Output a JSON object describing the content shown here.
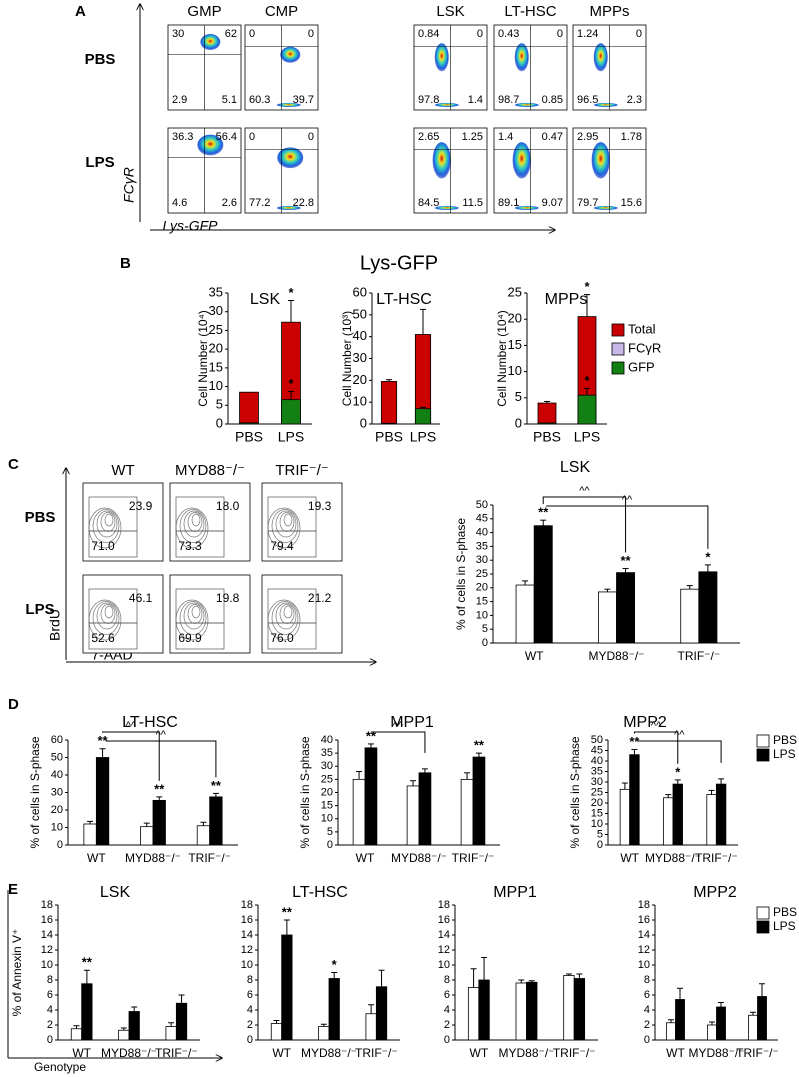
{
  "panel_labels": [
    "A",
    "B",
    "C",
    "D",
    "E"
  ],
  "flow_a": {
    "columns": [
      "GMP",
      "CMP",
      "LSK",
      "LT-HSC",
      "MPPs"
    ],
    "rows": [
      {
        "label": "PBS",
        "quadrants": [
          [
            "30",
            "62",
            "2.9",
            "5.1"
          ],
          [
            "0",
            "0",
            "60.3",
            "39.7"
          ],
          [
            "0.84",
            "0",
            "97.8",
            "1.4"
          ],
          [
            "0.43",
            "0",
            "98.7",
            "0.85"
          ],
          [
            "1.24",
            "0",
            "96.5",
            "2.3"
          ]
        ]
      },
      {
        "label": "LPS",
        "quadrants": [
          [
            "36.3",
            "56.4",
            "4.6",
            "2.6"
          ],
          [
            "0",
            "0",
            "77.2",
            "22.8"
          ],
          [
            "2.65",
            "1.25",
            "84.5",
            "11.5"
          ],
          [
            "1.4",
            "0.47",
            "89.1",
            "9.07"
          ],
          [
            "2.95",
            "1.78",
            "79.7",
            "15.6"
          ]
        ]
      }
    ],
    "y_axis": "FCγR",
    "x_axis": "Lys-GFP"
  },
  "panel_b": {
    "title": "Lys-GFP"
  },
  "flow_c": {
    "columns": [
      "WT",
      "MYD88⁻/⁻",
      "TRIF⁻/⁻"
    ],
    "rows": [
      {
        "label": "PBS",
        "gates": [
          [
            "23.9",
            "71.0"
          ],
          [
            "18.0",
            "73.3"
          ],
          [
            "19.3",
            "79.4"
          ]
        ]
      },
      {
        "label": "LPS",
        "gates": [
          [
            "46.1",
            "52.6"
          ],
          [
            "19.8",
            "69.9"
          ],
          [
            "21.2",
            "76.0"
          ]
        ]
      }
    ],
    "y_axis": "BrdU",
    "x_axis": "7-AAD"
  },
  "chart_data": [
    {
      "type": "bar",
      "overlay": true,
      "title": "LSK",
      "ylabel": "Cell Number (10⁴)",
      "categories": [
        "PBS",
        "LPS"
      ],
      "series": [
        {
          "name": "Total",
          "color": "#cc0000",
          "values": [
            8.5,
            27.2
          ],
          "errors": [
            null,
            5.8
          ],
          "stars": [
            null,
            "*"
          ]
        },
        {
          "name": "FCγR",
          "color": "#c8b8e8",
          "values": [
            0.2,
            0.6
          ],
          "errors": [
            null,
            null
          ]
        },
        {
          "name": "GFP",
          "color": "#138013",
          "values": [
            0.3,
            6.5
          ],
          "errors": [
            null,
            2.2
          ],
          "stars": [
            null,
            "*"
          ]
        }
      ],
      "ylim": [
        0,
        35
      ],
      "yticks": [
        0,
        5,
        10,
        15,
        20,
        25,
        30,
        35
      ],
      "legend": false
    },
    {
      "type": "bar",
      "overlay": true,
      "title": "LT-HSC",
      "ylabel": "Cell Number (10³)",
      "categories": [
        "PBS",
        "LPS"
      ],
      "series": [
        {
          "name": "Total",
          "color": "#cc0000",
          "values": [
            19.5,
            41
          ],
          "errors": [
            0.8,
            11.5
          ]
        },
        {
          "name": "FCγR",
          "color": "#c8b8e8",
          "values": [
            0.3,
            0.8
          ],
          "errors": [
            null,
            null
          ]
        },
        {
          "name": "GFP",
          "color": "#138013",
          "values": [
            0.3,
            7
          ],
          "errors": [
            null,
            0.6
          ]
        }
      ],
      "ylim": [
        0,
        60
      ],
      "yticks": [
        0,
        10,
        20,
        30,
        40,
        50,
        60
      ],
      "legend": false
    },
    {
      "type": "bar",
      "overlay": true,
      "title": "MPPs",
      "ylabel": "Cell Number (10⁴)",
      "categories": [
        "PBS",
        "LPS"
      ],
      "series": [
        {
          "name": "Total",
          "color": "#cc0000",
          "values": [
            4,
            20.5
          ],
          "errors": [
            0.3,
            4.2
          ],
          "stars": [
            null,
            "*"
          ]
        },
        {
          "name": "FCγR",
          "color": "#c8b8e8",
          "values": [
            0.1,
            0.6
          ],
          "errors": [
            null,
            null
          ]
        },
        {
          "name": "GFP",
          "color": "#138013",
          "values": [
            0.2,
            5.5
          ],
          "errors": [
            null,
            1.3
          ],
          "stars": [
            null,
            "*"
          ]
        }
      ],
      "ylim": [
        0,
        25
      ],
      "yticks": [
        0,
        5,
        10,
        15,
        20,
        25
      ],
      "legend": true
    },
    {
      "type": "bar",
      "title": "LSK",
      "ylabel": "% of cells in S-phase",
      "categories": [
        "WT",
        "MYD88⁻/⁻",
        "TRIF⁻/⁻"
      ],
      "series": [
        {
          "name": "PBS",
          "color": "#ffffff",
          "values": [
            21,
            18.5,
            19.5
          ],
          "errors": [
            1.5,
            1,
            1.3
          ]
        },
        {
          "name": "LPS",
          "color": "#000000",
          "values": [
            42.5,
            25.5,
            25.8
          ],
          "errors": [
            2,
            1.5,
            2.5
          ],
          "stars": [
            "**",
            "**",
            "*"
          ]
        }
      ],
      "brackets": [
        {
          "from": "WT",
          "to": "MYD88⁻/⁻",
          "label": "^^"
        },
        {
          "from": "WT",
          "to": "TRIF⁻/⁻",
          "label": "^^"
        }
      ],
      "ylim": [
        0,
        50
      ],
      "yticks": [
        0,
        5,
        10,
        15,
        20,
        25,
        30,
        35,
        40,
        45,
        50
      ],
      "legend": false
    },
    {
      "type": "bar",
      "title": "LT-HSC",
      "ylabel": "% of cells in S-phase",
      "categories": [
        "WT",
        "MYD88⁻/⁻",
        "TRIF⁻/⁻"
      ],
      "series": [
        {
          "name": "PBS",
          "color": "#ffffff",
          "values": [
            12,
            10.5,
            11
          ],
          "errors": [
            1.5,
            2,
            2
          ]
        },
        {
          "name": "LPS",
          "color": "#000000",
          "values": [
            50,
            25.5,
            27.5
          ],
          "errors": [
            5,
            2,
            2
          ],
          "stars": [
            "**",
            "**",
            "**"
          ]
        }
      ],
      "brackets": [
        {
          "from": "WT",
          "to": "MYD88⁻/⁻",
          "label": "^^"
        },
        {
          "from": "WT",
          "to": "TRIF⁻/⁻",
          "label": "^^"
        }
      ],
      "ylim": [
        0,
        60
      ],
      "yticks": [
        0,
        10,
        20,
        30,
        40,
        50,
        60
      ],
      "legend": false
    },
    {
      "type": "bar",
      "title": "MPP1",
      "ylabel": "% of cells in S-phase",
      "categories": [
        "WT",
        "MYD88⁻/⁻",
        "TRIF⁻/⁻"
      ],
      "series": [
        {
          "name": "PBS",
          "color": "#ffffff",
          "values": [
            25,
            22.5,
            25
          ],
          "errors": [
            3,
            2,
            2.5
          ]
        },
        {
          "name": "LPS",
          "color": "#000000",
          "values": [
            37,
            27.5,
            33.5
          ],
          "errors": [
            1.5,
            1.5,
            1.5
          ],
          "stars": [
            "**",
            null,
            "**"
          ]
        }
      ],
      "brackets": [
        {
          "from": "WT",
          "to": "MYD88⁻/⁻",
          "label": "^^"
        }
      ],
      "ylim": [
        0,
        40
      ],
      "yticks": [
        0,
        5,
        10,
        15,
        20,
        25,
        30,
        35,
        40
      ],
      "legend": false
    },
    {
      "type": "bar",
      "title": "MPP2",
      "ylabel": "% of cells in S-phase",
      "categories": [
        "WT",
        "MYD88⁻/⁻",
        "TRIF⁻/⁻"
      ],
      "series": [
        {
          "name": "PBS",
          "color": "#ffffff",
          "values": [
            26.5,
            22.5,
            24
          ],
          "errors": [
            3,
            1.5,
            2
          ]
        },
        {
          "name": "LPS",
          "color": "#000000",
          "values": [
            43,
            29,
            29
          ],
          "errors": [
            2.5,
            2,
            2.5
          ],
          "stars": [
            "**",
            "*",
            null
          ]
        }
      ],
      "brackets": [
        {
          "from": "WT",
          "to": "MYD88⁻/⁻",
          "label": "^^"
        },
        {
          "from": "WT",
          "to": "TRIF⁻/⁻",
          "label": "^^"
        }
      ],
      "ylim": [
        0,
        50
      ],
      "yticks": [
        0,
        5,
        10,
        15,
        20,
        25,
        30,
        35,
        40,
        45,
        50
      ],
      "legend": true
    },
    {
      "type": "bar",
      "title": "LSK",
      "ylabel": "% of Annexin V⁺",
      "xlabel": "Genotype",
      "categories": [
        "WT",
        "MYD88⁻/⁻",
        "TRIF⁻/⁻"
      ],
      "series": [
        {
          "name": "PBS",
          "color": "#ffffff",
          "values": [
            1.5,
            1.3,
            1.8
          ],
          "errors": [
            0.4,
            0.3,
            0.5
          ]
        },
        {
          "name": "LPS",
          "color": "#000000",
          "values": [
            7.5,
            3.8,
            4.9
          ],
          "errors": [
            1.8,
            0.6,
            1.1
          ],
          "stars": [
            "**",
            null,
            null
          ]
        }
      ],
      "ylim": [
        0,
        18
      ],
      "yticks": [
        0,
        2,
        4,
        6,
        8,
        10,
        12,
        14,
        16,
        18
      ],
      "legend": false
    },
    {
      "type": "bar",
      "title": "LT-HSC",
      "categories": [
        "WT",
        "MYD88⁻/⁻",
        "TRIF⁻/⁻"
      ],
      "series": [
        {
          "name": "PBS",
          "color": "#ffffff",
          "values": [
            2.2,
            1.8,
            3.5
          ],
          "errors": [
            0.4,
            0.3,
            1.2
          ]
        },
        {
          "name": "LPS",
          "color": "#000000",
          "values": [
            14,
            8.2,
            7.1
          ],
          "errors": [
            2,
            0.8,
            2.2
          ],
          "stars": [
            "**",
            "*",
            null
          ]
        }
      ],
      "ylim": [
        0,
        18
      ],
      "yticks": [
        0,
        2,
        4,
        6,
        8,
        10,
        12,
        14,
        16,
        18
      ],
      "legend": false
    },
    {
      "type": "bar",
      "title": "MPP1",
      "categories": [
        "WT",
        "MYD88⁻/⁻",
        "TRIF⁻/⁻"
      ],
      "series": [
        {
          "name": "PBS",
          "color": "#ffffff",
          "values": [
            7,
            7.6,
            8.6
          ],
          "errors": [
            2.5,
            0.4,
            0.2
          ]
        },
        {
          "name": "LPS",
          "color": "#000000",
          "values": [
            8,
            7.7,
            8.2
          ],
          "errors": [
            3,
            0.2,
            0.6
          ]
        }
      ],
      "ylim": [
        0,
        18
      ],
      "yticks": [
        0,
        2,
        4,
        6,
        8,
        10,
        12,
        14,
        16,
        18
      ],
      "legend": false
    },
    {
      "type": "bar",
      "title": "MPP2",
      "categories": [
        "WT",
        "MYD88⁻/⁻",
        "TRIF⁻/⁻"
      ],
      "series": [
        {
          "name": "PBS",
          "color": "#ffffff",
          "values": [
            2.3,
            2,
            3.3
          ],
          "errors": [
            0.4,
            0.4,
            0.4
          ]
        },
        {
          "name": "LPS",
          "color": "#000000",
          "values": [
            5.4,
            4.4,
            5.8
          ],
          "errors": [
            1.5,
            0.6,
            1.7
          ]
        }
      ],
      "ylim": [
        0,
        18
      ],
      "yticks": [
        0,
        2,
        4,
        6,
        8,
        10,
        12,
        14,
        16,
        18
      ],
      "legend": true
    }
  ]
}
